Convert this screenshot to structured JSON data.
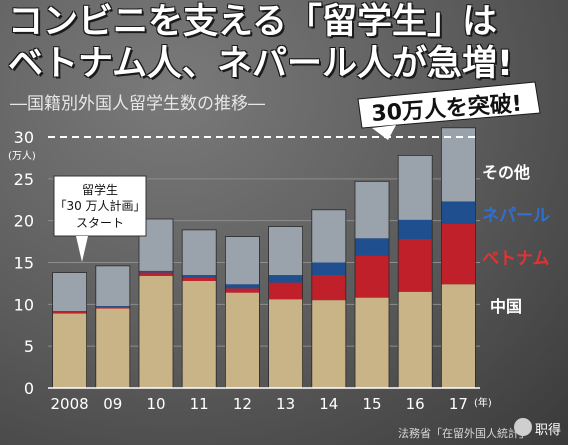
{
  "headline": {
    "line1": "コンビニを支える「留学生」は",
    "line2": "ベトナム人、ネパール人が急増!",
    "subtitle": "―国籍別外国人留学生数の推移―"
  },
  "callout": "30万人を突破!",
  "annotation": {
    "line1": "留学生",
    "line2": "「30 万人計画」",
    "line3": "スタート"
  },
  "source": "法務省「在留外国人統計」",
  "watermark": "职得",
  "colors": {
    "china": "#c9b487",
    "vietnam": "#c0202a",
    "nepal": "#1f4f8f",
    "other": "#9aa3ab",
    "background": "#5d5d5d"
  },
  "chart_data": {
    "type": "bar",
    "stacked": true,
    "categories": [
      "2008",
      "09",
      "10",
      "11",
      "12",
      "13",
      "14",
      "15",
      "16",
      "17"
    ],
    "x_unit": "(年)",
    "y_unit": "(万人)",
    "ylim": [
      0,
      30
    ],
    "yticks": [
      0,
      5,
      10,
      15,
      20,
      25,
      30
    ],
    "dashed_line_at": 30,
    "grid": true,
    "series": [
      {
        "name": "中国",
        "color": "#c9b487",
        "values": [
          8.9,
          9.5,
          13.4,
          12.8,
          11.4,
          10.6,
          10.5,
          10.8,
          11.5,
          12.4
        ]
      },
      {
        "name": "ベトナム",
        "color": "#c0202a",
        "values": [
          0.2,
          0.2,
          0.4,
          0.4,
          0.5,
          2.0,
          3.0,
          5.0,
          6.3,
          7.2
        ]
      },
      {
        "name": "ネパール",
        "color": "#1f4f8f",
        "values": [
          0.1,
          0.1,
          0.2,
          0.3,
          0.5,
          0.9,
          1.5,
          2.1,
          2.3,
          2.7
        ]
      },
      {
        "name": "その他",
        "color": "#9aa3ab",
        "values": [
          4.6,
          4.8,
          6.2,
          5.4,
          5.7,
          5.8,
          6.3,
          6.8,
          7.7,
          8.8
        ]
      }
    ],
    "legend_placement": "right"
  }
}
